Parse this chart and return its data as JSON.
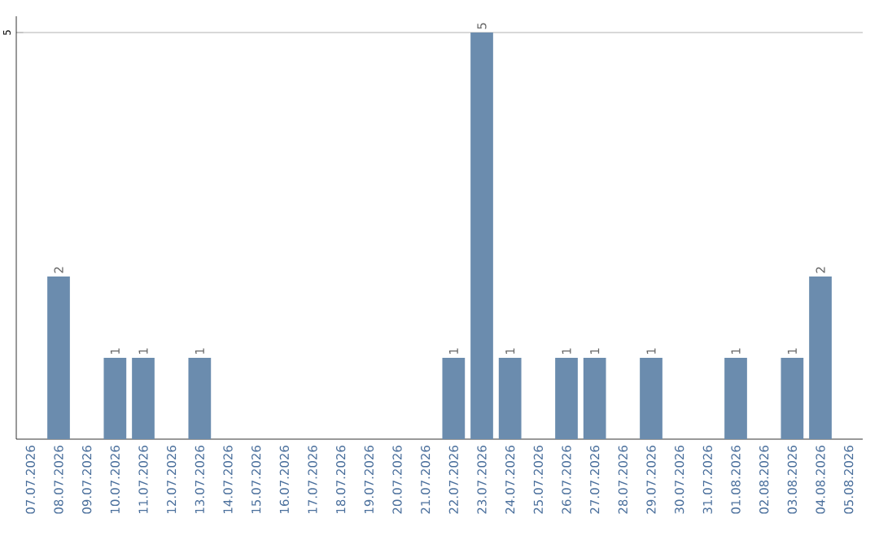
{
  "chart_data": {
    "type": "bar",
    "categories": [
      "07.07.2026",
      "08.07.2026",
      "09.07.2026",
      "10.07.2026",
      "11.07.2026",
      "12.07.2026",
      "13.07.2026",
      "14.07.2026",
      "15.07.2026",
      "16.07.2026",
      "17.07.2026",
      "18.07.2026",
      "19.07.2026",
      "20.07.2026",
      "21.07.2026",
      "22.07.2026",
      "23.07.2026",
      "24.07.2026",
      "25.07.2026",
      "26.07.2026",
      "27.07.2026",
      "28.07.2026",
      "29.07.2026",
      "30.07.2026",
      "31.07.2026",
      "01.08.2026",
      "02.08.2026",
      "03.08.2026",
      "04.08.2026",
      "05.08.2026"
    ],
    "values": [
      0,
      2,
      0,
      1,
      1,
      0,
      1,
      0,
      0,
      0,
      0,
      0,
      0,
      0,
      0,
      1,
      5,
      1,
      0,
      1,
      1,
      0,
      1,
      0,
      0,
      1,
      0,
      1,
      2,
      0
    ],
    "value_labels": [
      null,
      "2",
      null,
      "1",
      "1",
      null,
      "1",
      null,
      null,
      null,
      null,
      null,
      null,
      null,
      null,
      "1",
      "5",
      "1",
      null,
      "1",
      "1",
      null,
      "1",
      null,
      null,
      "1",
      null,
      "1",
      "2",
      null
    ],
    "color": "#6b8cae",
    "ylim": [
      0,
      5.2
    ],
    "yticks": [
      5
    ],
    "grid": "y"
  }
}
